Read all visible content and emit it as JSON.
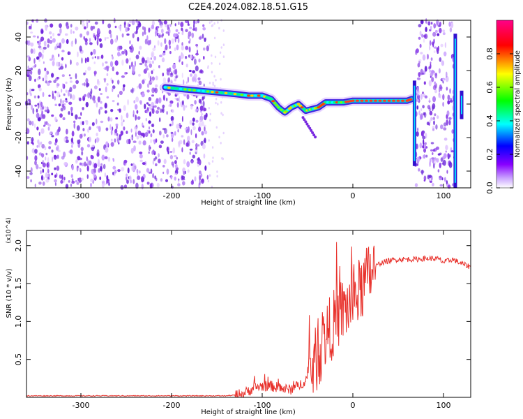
{
  "chart_data": [
    {
      "type": "heatmap",
      "title": "C2E4.2024.082.18.51.G15",
      "xlabel": "Height of straight line (km)",
      "ylabel": "Frequency (Hz)",
      "xlim": [
        -360,
        130
      ],
      "ylim": [
        -50,
        50
      ],
      "x_ticks": [
        -300,
        -200,
        -100,
        0,
        100
      ],
      "x_tick_labels": [
        "-300",
        "-200",
        "-100",
        "0",
        "100"
      ],
      "y_ticks": [
        40,
        20,
        0,
        -20,
        -40
      ],
      "y_tick_labels": [
        "40",
        "20",
        "0",
        "-20",
        "-40"
      ],
      "colorbar": {
        "label": "Normalized spectral amplitude",
        "range": [
          0,
          1
        ],
        "ticks": [
          0.0,
          0.2,
          0.4,
          0.6,
          0.8
        ],
        "tick_labels": [
          "0.0",
          "0.2",
          "0.4",
          "0.6",
          "0.8"
        ]
      },
      "colormap": [
        "#ffffff",
        "#8800ff",
        "#0000ff",
        "#00ffff",
        "#00ff00",
        "#ffff00",
        "#ff0000",
        "#ff00aa"
      ],
      "noise_regions": [
        {
          "x_range": [
            -360,
            -160
          ],
          "level": 0.08
        },
        {
          "x_range": [
            69,
            112
          ],
          "level": 0.08
        }
      ],
      "signal_track": [
        {
          "x": -207,
          "f": 10
        },
        {
          "x": -190,
          "f": 9
        },
        {
          "x": -170,
          "f": 8
        },
        {
          "x": -150,
          "f": 7
        },
        {
          "x": -130,
          "f": 6
        },
        {
          "x": -115,
          "f": 5
        },
        {
          "x": -100,
          "f": 5
        },
        {
          "x": -90,
          "f": 3
        },
        {
          "x": -82,
          "f": -2
        },
        {
          "x": -75,
          "f": -5
        },
        {
          "x": -68,
          "f": -2
        },
        {
          "x": -60,
          "f": 0
        },
        {
          "x": -52,
          "f": -4
        },
        {
          "x": -45,
          "f": -3
        },
        {
          "x": -38,
          "f": -2
        },
        {
          "x": -30,
          "f": 1
        },
        {
          "x": -20,
          "f": 1
        },
        {
          "x": -10,
          "f": 1
        },
        {
          "x": 0,
          "f": 2
        },
        {
          "x": 20,
          "f": 2
        },
        {
          "x": 40,
          "f": 2
        },
        {
          "x": 60,
          "f": 2
        },
        {
          "x": 65,
          "f": 3
        }
      ],
      "vertical_bursts": [
        {
          "x": 68,
          "f_range": [
            -37,
            14
          ]
        },
        {
          "x": 113,
          "f_range": [
            -50,
            42
          ]
        },
        {
          "x": 120,
          "f_range": [
            -9,
            8
          ]
        }
      ],
      "colors": {
        "noise": "#9b5de0",
        "signal_core": "#ff3b1f"
      }
    },
    {
      "type": "line",
      "title": "",
      "xlabel": "Height of straight line (km)",
      "ylabel": "SNR (10 * v/v)",
      "y_multiplier": "(x10^4)",
      "xlim": [
        -360,
        130
      ],
      "ylim": [
        0,
        2.2
      ],
      "x_ticks": [
        -300,
        -200,
        -100,
        0,
        100
      ],
      "x_tick_labels": [
        "-300",
        "-200",
        "-100",
        "0",
        "100"
      ],
      "y_ticks": [
        0.5,
        1.0,
        1.5,
        2.0
      ],
      "y_tick_labels": [
        "0.5",
        "1.0",
        "1.5",
        "2.0"
      ],
      "series": [
        {
          "color": "#e8302a",
          "x": [
            -360,
            -300,
            -250,
            -200,
            -160,
            -140,
            -130,
            -120,
            -110,
            -100,
            -90,
            -80,
            -70,
            -60,
            -50,
            -45,
            -40,
            -35,
            -30,
            -25,
            -20,
            -15,
            -10,
            -5,
            0,
            5,
            10,
            15,
            20,
            25,
            30,
            40,
            50,
            60,
            70,
            80,
            90,
            95,
            100,
            110,
            120,
            130
          ],
          "y": [
            0.02,
            0.02,
            0.02,
            0.02,
            0.02,
            0.02,
            0.03,
            0.05,
            0.12,
            0.15,
            0.15,
            0.12,
            0.1,
            0.15,
            0.25,
            0.4,
            0.5,
            0.65,
            0.8,
            0.9,
            1.0,
            1.1,
            1.15,
            1.2,
            1.28,
            1.35,
            1.45,
            1.55,
            1.65,
            1.72,
            1.77,
            1.8,
            1.82,
            1.82,
            1.82,
            1.83,
            1.83,
            1.82,
            1.78,
            1.82,
            1.76,
            1.72
          ]
        }
      ]
    }
  ]
}
